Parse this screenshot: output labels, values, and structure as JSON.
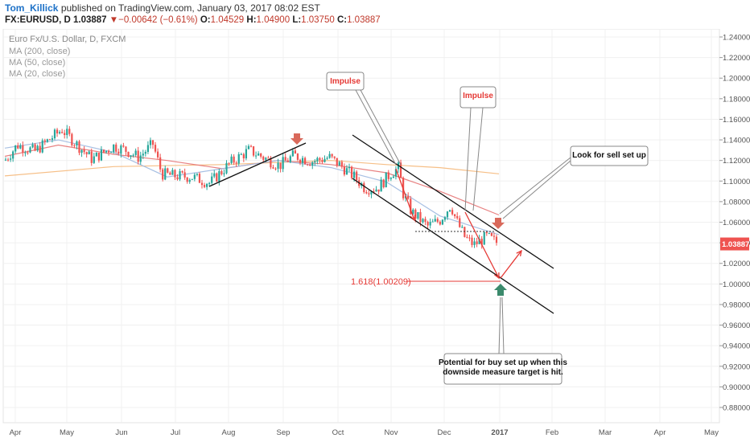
{
  "header": {
    "author": "Tom_Killick",
    "published": "published on TradingView.com, January 03, 2017 08:02 EST",
    "symbol": "FX:EURUSD, D",
    "last": "1.03887",
    "change_arrow": "▼",
    "change": "−0.00642 (−0.61%)",
    "o_label": "O:",
    "o_val": "1.04529",
    "h_label": "H:",
    "h_val": "1.04900",
    "l_label": "L:",
    "l_val": "1.03750",
    "c_label": "C:",
    "c_val": "1.03887"
  },
  "legend": {
    "title": "Euro Fx/U.S. Dollar, D, FXCM",
    "ma200": "MA (200, close)",
    "ma50": "MA (50, close)",
    "ma20": "MA (20, close)"
  },
  "colors": {
    "up": "#26a69a",
    "down": "#ef5350",
    "ma200": "#f5b87a",
    "ma50": "#e57373",
    "ma20": "#9fb9e0",
    "annotation": "#e53935",
    "buy_arrow": "#3b8a6c",
    "sell_arrow": "#d9695b"
  },
  "chart_data": {
    "type": "candlestick",
    "title": "Euro Fx/U.S. Dollar, D, FXCM",
    "y_axis_ticks": [
      "1.24000",
      "1.22000",
      "1.20000",
      "1.18000",
      "1.16000",
      "1.14000",
      "1.12000",
      "1.10000",
      "1.08000",
      "1.06000",
      "1.04000",
      "1.02000",
      "1.00000",
      "0.98000",
      "0.96000",
      "0.94000",
      "0.92000",
      "0.90000",
      "0.88000"
    ],
    "ylim": [
      0.87,
      1.25
    ],
    "x_axis_ticks": [
      "Apr",
      "May",
      "Jun",
      "Jul",
      "Aug",
      "Sep",
      "Oct",
      "Nov",
      "Dec",
      "2017",
      "Feb",
      "Mar",
      "Apr",
      "May"
    ],
    "last_price_label": "1.03887",
    "series": [
      {
        "name": "MA (200, close)",
        "x": [
          "2016-04-01",
          "2016-06-01",
          "2016-08-01",
          "2016-10-01",
          "2016-11-01",
          "2016-12-01",
          "2017-01-03"
        ],
        "y": [
          1.105,
          1.114,
          1.116,
          1.12,
          1.116,
          1.113,
          1.107
        ]
      },
      {
        "name": "MA (50, close)",
        "x": [
          "2016-04-01",
          "2016-05-01",
          "2016-06-01",
          "2016-07-01",
          "2016-08-01",
          "2016-09-01",
          "2016-10-01",
          "2016-11-01",
          "2016-12-01",
          "2017-01-03"
        ],
        "y": [
          1.124,
          1.135,
          1.126,
          1.12,
          1.112,
          1.12,
          1.116,
          1.108,
          1.09,
          1.067
        ]
      },
      {
        "name": "MA (20, close)",
        "x": [
          "2016-04-01",
          "2016-05-01",
          "2016-06-01",
          "2016-07-01",
          "2016-08-01",
          "2016-09-01",
          "2016-10-01",
          "2016-11-01",
          "2016-12-01",
          "2017-01-03"
        ],
        "y": [
          1.132,
          1.14,
          1.128,
          1.104,
          1.112,
          1.12,
          1.113,
          1.099,
          1.066,
          1.048
        ]
      }
    ],
    "close_path": {
      "x": [
        "2016-04-01",
        "2016-04-08",
        "2016-04-18",
        "2016-04-25",
        "2016-05-03",
        "2016-05-10",
        "2016-05-20",
        "2016-06-01",
        "2016-06-08",
        "2016-06-15",
        "2016-06-23",
        "2016-06-28",
        "2016-07-05",
        "2016-07-15",
        "2016-07-25",
        "2016-08-05",
        "2016-08-16",
        "2016-08-25",
        "2016-09-02",
        "2016-09-10",
        "2016-09-20",
        "2016-09-30",
        "2016-10-07",
        "2016-10-14",
        "2016-10-20",
        "2016-10-27",
        "2016-11-03",
        "2016-11-08",
        "2016-11-10",
        "2016-11-15",
        "2016-11-24",
        "2016-12-01",
        "2016-12-07",
        "2016-12-10",
        "2016-12-15",
        "2016-12-20",
        "2016-12-27",
        "2017-01-03"
      ],
      "y": [
        1.12,
        1.135,
        1.129,
        1.139,
        1.15,
        1.138,
        1.121,
        1.134,
        1.13,
        1.123,
        1.136,
        1.107,
        1.105,
        1.104,
        1.098,
        1.117,
        1.13,
        1.122,
        1.115,
        1.125,
        1.119,
        1.123,
        1.114,
        1.104,
        1.093,
        1.093,
        1.107,
        1.113,
        1.089,
        1.07,
        1.056,
        1.062,
        1.077,
        1.062,
        1.045,
        1.038,
        1.046,
        1.039
      ]
    },
    "annotations": [
      {
        "text": "Impulse",
        "kind": "callout"
      },
      {
        "text": "Impulse",
        "kind": "callout"
      },
      {
        "text": "Look for sell set up",
        "kind": "callout"
      },
      {
        "text": "1.618(1.00209)",
        "kind": "fib-level",
        "value": 1.00209
      },
      {
        "text": "Potential for buy set up when this downside measure target is hit.",
        "kind": "callout"
      }
    ]
  }
}
